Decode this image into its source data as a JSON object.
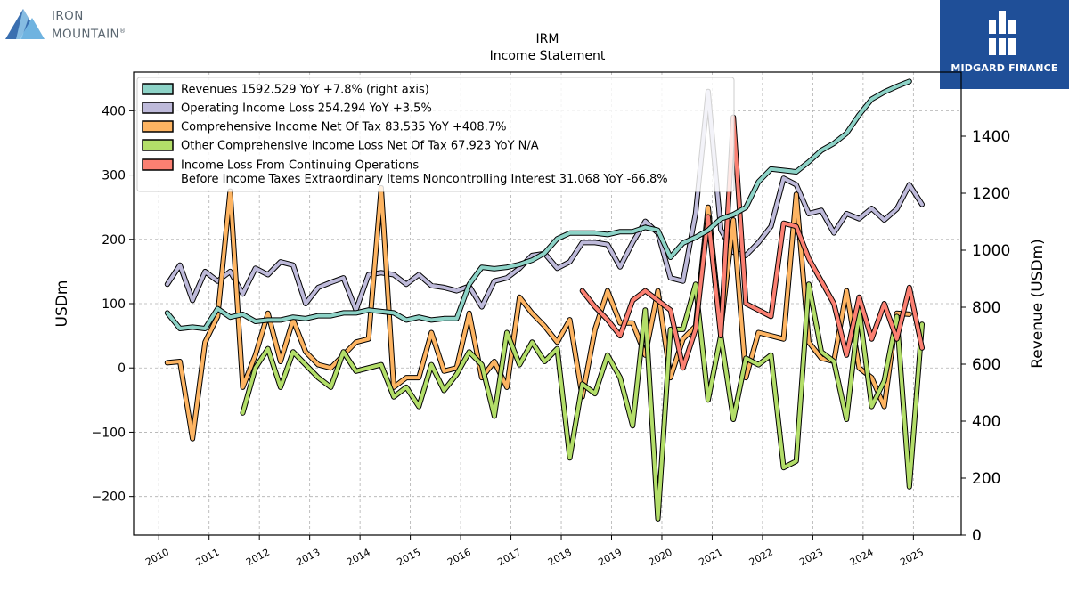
{
  "brand": {
    "left_line1": "IRON",
    "left_line2": "MOUNTAIN",
    "left_mark": "®",
    "left_colors": [
      "#3a6fb0",
      "#6fb3e0",
      "#9ad0ef"
    ],
    "right_name": "MIDGARD FINANCE",
    "right_bg": "#1f4f98"
  },
  "chart_data": {
    "type": "line",
    "title": "IRM",
    "subtitle": "Income Statement",
    "ylabel_left": "USDm",
    "ylabel_right": "Revenue (USDm)",
    "ylim_left": [
      -260,
      460
    ],
    "ylim_right": [
      0,
      1625
    ],
    "yticks_left": [
      -200,
      -100,
      0,
      100,
      200,
      300,
      400
    ],
    "ytick_labels_left": [
      "−200",
      "−100",
      "0",
      "100",
      "200",
      "300",
      "400"
    ],
    "yticks_right": [
      0,
      200,
      400,
      600,
      800,
      1000,
      1200,
      1400
    ],
    "ytick_labels_right": [
      "0",
      "200",
      "400",
      "600",
      "800",
      "1000",
      "1200",
      "1400"
    ],
    "xlim": [
      2009.5,
      2025.95
    ],
    "xticks": [
      "2010",
      "2011",
      "2012",
      "2013",
      "2014",
      "2015",
      "2016",
      "2017",
      "2018",
      "2019",
      "2020",
      "2021",
      "2022",
      "2023",
      "2024",
      "2025"
    ],
    "grid": true,
    "legend_position": "top-left",
    "series": [
      {
        "name": "Revenues",
        "legend": "Revenues  1592.529 YoY +7.8% (right axis)",
        "axis": "right",
        "color": "#8dd3c7",
        "x_start": 2010.17,
        "x_step": 0.25,
        "values": [
          780,
          725,
          730,
          725,
          795,
          765,
          775,
          750,
          755,
          755,
          765,
          760,
          770,
          770,
          780,
          780,
          790,
          785,
          780,
          755,
          765,
          755,
          760,
          760,
          880,
          940,
          935,
          940,
          950,
          965,
          990,
          1040,
          1060,
          1060,
          1060,
          1055,
          1065,
          1065,
          1080,
          1070,
          975,
          1025,
          1045,
          1070,
          1110,
          1125,
          1150,
          1240,
          1285,
          1280,
          1275,
          1310,
          1350,
          1375,
          1410,
          1475,
          1530,
          1555,
          1575,
          1592.529
        ]
      },
      {
        "name": "Operating Income Loss",
        "legend": "Operating Income Loss  254.294 YoY +3.5%",
        "axis": "left",
        "color": "#bebada",
        "x_start": 2010.17,
        "x_step": 0.25,
        "values": [
          130,
          160,
          105,
          150,
          135,
          150,
          115,
          155,
          145,
          165,
          160,
          100,
          125,
          133,
          140,
          90,
          145,
          148,
          145,
          130,
          145,
          128,
          125,
          120,
          127,
          95,
          135,
          140,
          155,
          175,
          178,
          155,
          165,
          195,
          195,
          192,
          157,
          195,
          228,
          210,
          140,
          135,
          240,
          430,
          215,
          180,
          175,
          195,
          220,
          295,
          285,
          240,
          245,
          210,
          240,
          232,
          248,
          230,
          247,
          285,
          254.294
        ]
      },
      {
        "name": "Comprehensive Income Net Of Tax",
        "legend": "Comprehensive Income Net Of Tax  83.535 YoY +408.7%",
        "axis": "left",
        "color": "#fdb462",
        "x_start": 2010.17,
        "x_step": 0.25,
        "values": [
          8,
          10,
          -110,
          40,
          80,
          275,
          -30,
          20,
          85,
          10,
          75,
          25,
          5,
          0,
          20,
          40,
          45,
          280,
          -30,
          -15,
          -15,
          55,
          -5,
          0,
          85,
          -15,
          10,
          -30,
          110,
          85,
          65,
          40,
          75,
          -45,
          60,
          120,
          70,
          70,
          20,
          120,
          -15,
          45,
          65,
          250,
          60,
          230,
          -15,
          55,
          50,
          45,
          270,
          40,
          15,
          10,
          120,
          0,
          -15,
          -60,
          85,
          83.535
        ]
      },
      {
        "name": "Other Comprehensive Income Loss Net Of Tax",
        "legend": "Other Comprehensive Income Loss Net Of Tax  67.923 YoY N/A",
        "axis": "left",
        "color": "#b3de69",
        "x_start": 2011.67,
        "x_step": 0.25,
        "values": [
          -70,
          0,
          30,
          -30,
          25,
          5,
          -15,
          -30,
          25,
          -5,
          0,
          5,
          -45,
          -30,
          -60,
          5,
          -35,
          -10,
          25,
          5,
          -75,
          55,
          5,
          40,
          10,
          30,
          -140,
          -25,
          -40,
          20,
          -15,
          -90,
          90,
          -235,
          60,
          60,
          130,
          -50,
          50,
          -80,
          15,
          5,
          20,
          -155,
          -145,
          130,
          25,
          10,
          -80,
          90,
          -60,
          -20,
          80,
          -185,
          67.923
        ]
      },
      {
        "name": "Income Loss From Continuing Operations Before Income Taxes Extraordinary Items Noncontrolling Interest",
        "legend": "Income Loss From Continuing Operations",
        "legend2": "Before Income Taxes Extraordinary Items Noncontrolling Interest  31.068 YoY -66.8%",
        "axis": "left",
        "color": "#fb8072",
        "x_start": 2018.42,
        "x_step": 0.25,
        "values": [
          120,
          95,
          75,
          50,
          105,
          120,
          105,
          90,
          0,
          60,
          235,
          50,
          390,
          100,
          90,
          80,
          225,
          220,
          170,
          135,
          100,
          20,
          110,
          45,
          100,
          45,
          125,
          31.068
        ]
      }
    ]
  }
}
